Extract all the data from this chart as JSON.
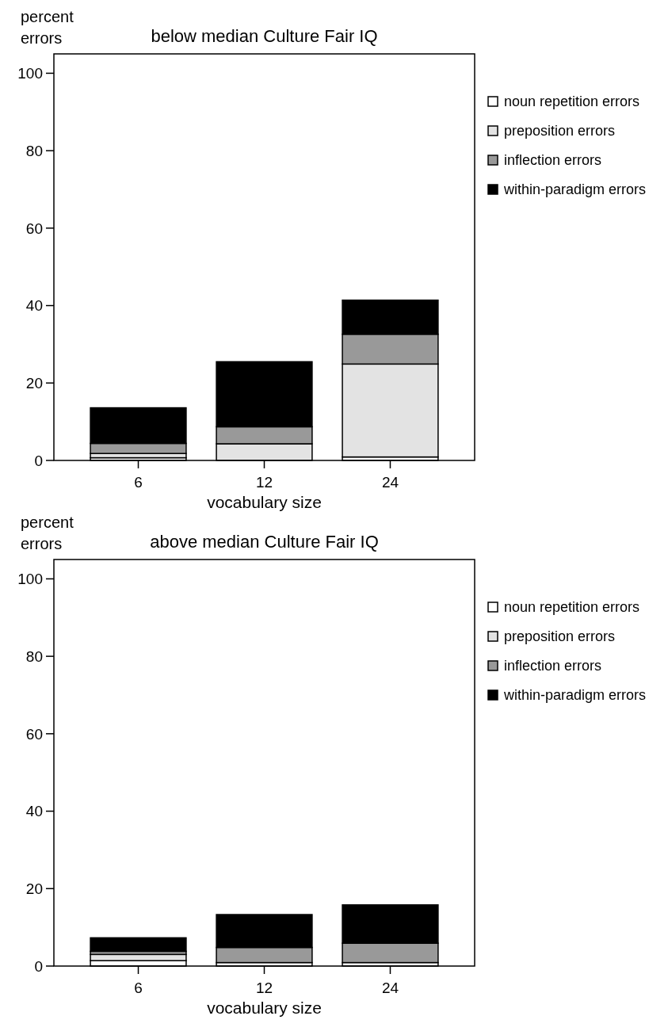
{
  "chart_data": [
    {
      "type": "bar",
      "title": "below median Culture Fair IQ",
      "xlabel": "vocabulary size",
      "ylabel": "percent errors",
      "categories": [
        "6",
        "12",
        "24"
      ],
      "stacked": true,
      "ylim": [
        0,
        105
      ],
      "yticks": [
        0,
        20,
        40,
        60,
        80,
        100
      ],
      "legend": "right",
      "series": [
        {
          "name": "noun repetition errors",
          "color": "#ffffff",
          "values": [
            0.7,
            0,
            0.9
          ]
        },
        {
          "name": "preposition errors",
          "color": "#e3e3e3",
          "values": [
            1.1,
            4.3,
            24.0
          ]
        },
        {
          "name": "inflection errors",
          "color": "#999999",
          "values": [
            2.6,
            4.4,
            7.7
          ]
        },
        {
          "name": "within-paradigm errors",
          "color": "#000000",
          "values": [
            9.2,
            16.8,
            8.8
          ]
        }
      ]
    },
    {
      "type": "bar",
      "title": "above median Culture Fair IQ",
      "xlabel": "vocabulary size",
      "ylabel": "percent errors",
      "categories": [
        "6",
        "12",
        "24"
      ],
      "stacked": true,
      "ylim": [
        0,
        105
      ],
      "yticks": [
        0,
        20,
        40,
        60,
        80,
        100
      ],
      "legend": "right",
      "series": [
        {
          "name": "noun repetition errors",
          "color": "#ffffff",
          "values": [
            1.4,
            0.9,
            0.9
          ]
        },
        {
          "name": "preposition errors",
          "color": "#e3e3e3",
          "values": [
            1.6,
            0,
            0
          ]
        },
        {
          "name": "inflection errors",
          "color": "#999999",
          "values": [
            0.8,
            3.9,
            5.0
          ]
        },
        {
          "name": "within-paradigm errors",
          "color": "#000000",
          "values": [
            3.5,
            8.5,
            9.9
          ]
        }
      ]
    }
  ]
}
